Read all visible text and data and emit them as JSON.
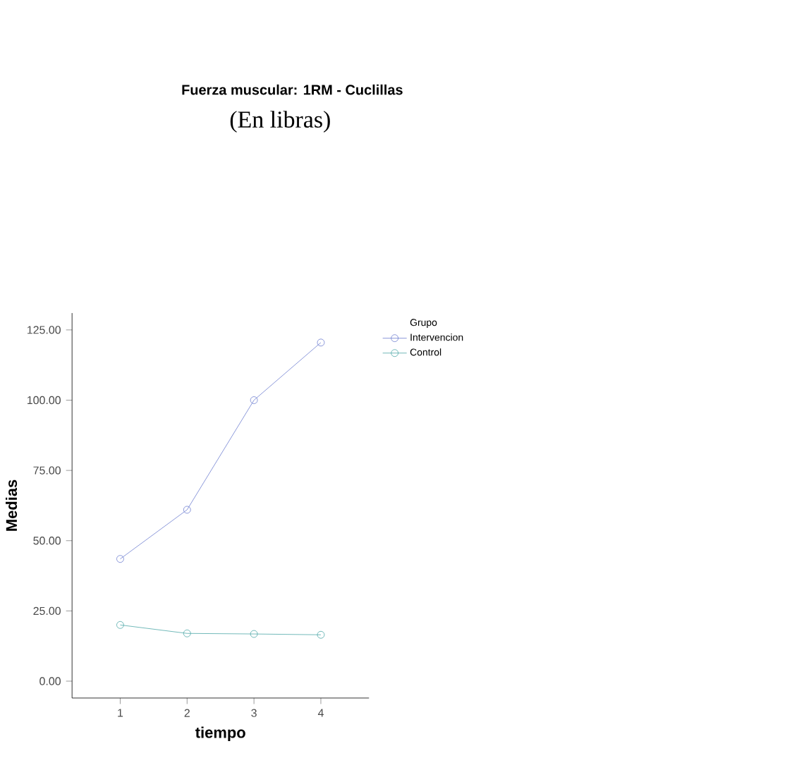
{
  "chart_data": {
    "type": "line",
    "title": "Fuerza muscular: 1RM - Cuclillas",
    "subtitle": "(En libras)",
    "xlabel": "tiempo",
    "ylabel": "Medias",
    "legend_title": "Grupo",
    "legend": "top right",
    "marker": "circle",
    "x": [
      1,
      2,
      3,
      4
    ],
    "xlim": [
      0.28,
      4.72
    ],
    "xticks": [
      1,
      2,
      3,
      4
    ],
    "ylim": [
      -6,
      131
    ],
    "yticks": [
      {
        "value": 0,
        "label": "0.00"
      },
      {
        "value": 25,
        "label": "25.00"
      },
      {
        "value": 50,
        "label": "50.00"
      },
      {
        "value": 75,
        "label": "75.00"
      },
      {
        "value": 100,
        "label": "100.00"
      },
      {
        "value": 125,
        "label": "125.00"
      }
    ],
    "series": [
      {
        "name": "Intervencion",
        "color": "#6f7fd0",
        "values": [
          43.5,
          61,
          100,
          120.5
        ]
      },
      {
        "name": "Control",
        "color": "#4fa8a8",
        "values": [
          20,
          17,
          16.8,
          16.5
        ]
      }
    ]
  }
}
